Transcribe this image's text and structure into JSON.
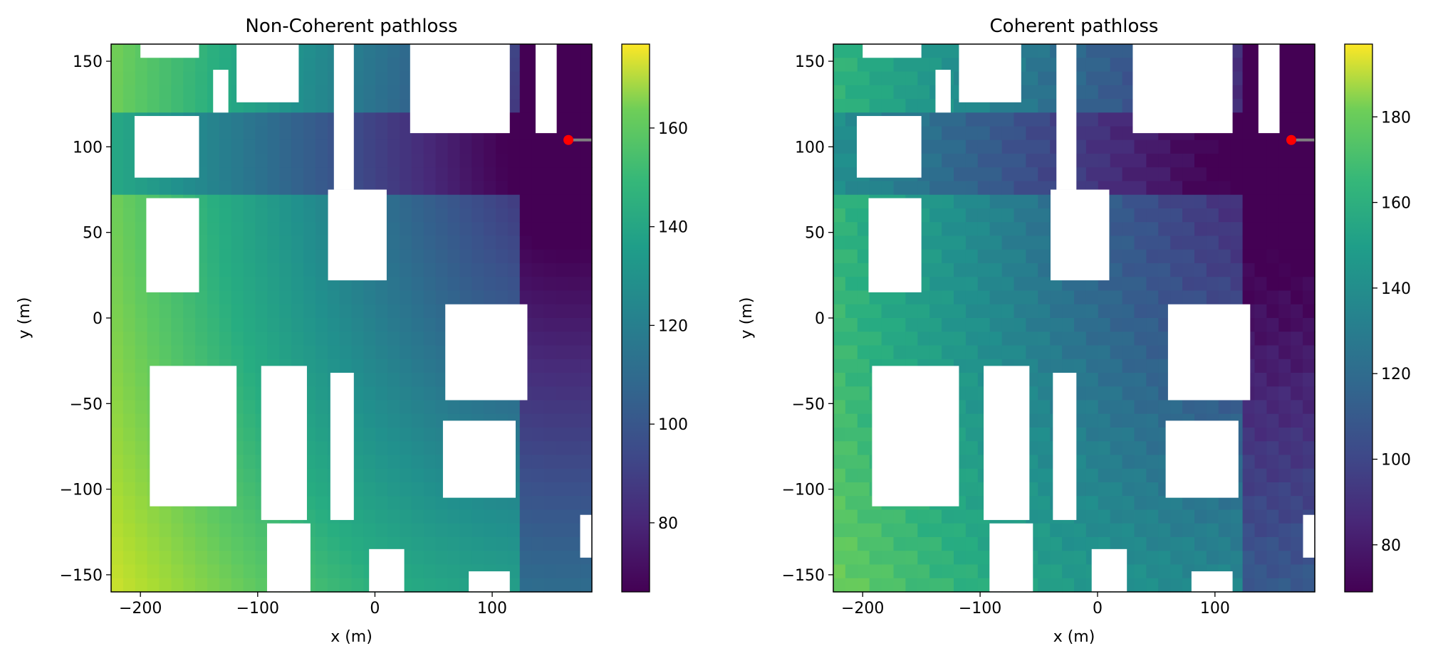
{
  "figure": {
    "panels": [
      {
        "title": "Non-Coherent pathloss",
        "xlabel": "x (m)",
        "ylabel": "y (m)",
        "x_ticks": [
          -200,
          -100,
          0,
          100
        ],
        "y_ticks": [
          -150,
          -100,
          -50,
          0,
          50,
          100,
          150
        ],
        "cbar_ticks": [
          80,
          100,
          120,
          140,
          160
        ]
      },
      {
        "title": "Coherent pathloss",
        "xlabel": "x (m)",
        "ylabel": "y (m)",
        "x_ticks": [
          -200,
          -100,
          0,
          100
        ],
        "y_ticks": [
          -150,
          -100,
          -50,
          0,
          50,
          100,
          150
        ],
        "cbar_ticks": [
          80,
          100,
          120,
          140,
          160,
          180
        ]
      }
    ]
  },
  "chart_data": [
    {
      "type": "heatmap",
      "title": "Non-Coherent pathloss",
      "xlabel": "x (m)",
      "ylabel": "y (m)",
      "xlim": [
        -225,
        185
      ],
      "ylim": [
        -160,
        160
      ],
      "colormap": "viridis",
      "clim": [
        66,
        177
      ],
      "colorbar_ticks": [
        80,
        100,
        120,
        140,
        160
      ],
      "transmitter": {
        "x": 165,
        "y": 104,
        "color": "#ff0000"
      },
      "no_data_regions": "buildings (white)",
      "grid": false
    },
    {
      "type": "heatmap",
      "title": "Coherent pathloss",
      "xlabel": "x (m)",
      "ylabel": "y (m)",
      "xlim": [
        -225,
        185
      ],
      "ylim": [
        -160,
        160
      ],
      "colormap": "viridis",
      "clim": [
        69,
        197
      ],
      "colorbar_ticks": [
        80,
        100,
        120,
        140,
        160,
        180
      ],
      "transmitter": {
        "x": 165,
        "y": 104,
        "color": "#ff0000"
      },
      "no_data_regions": "buildings (white)",
      "grid": false
    }
  ]
}
